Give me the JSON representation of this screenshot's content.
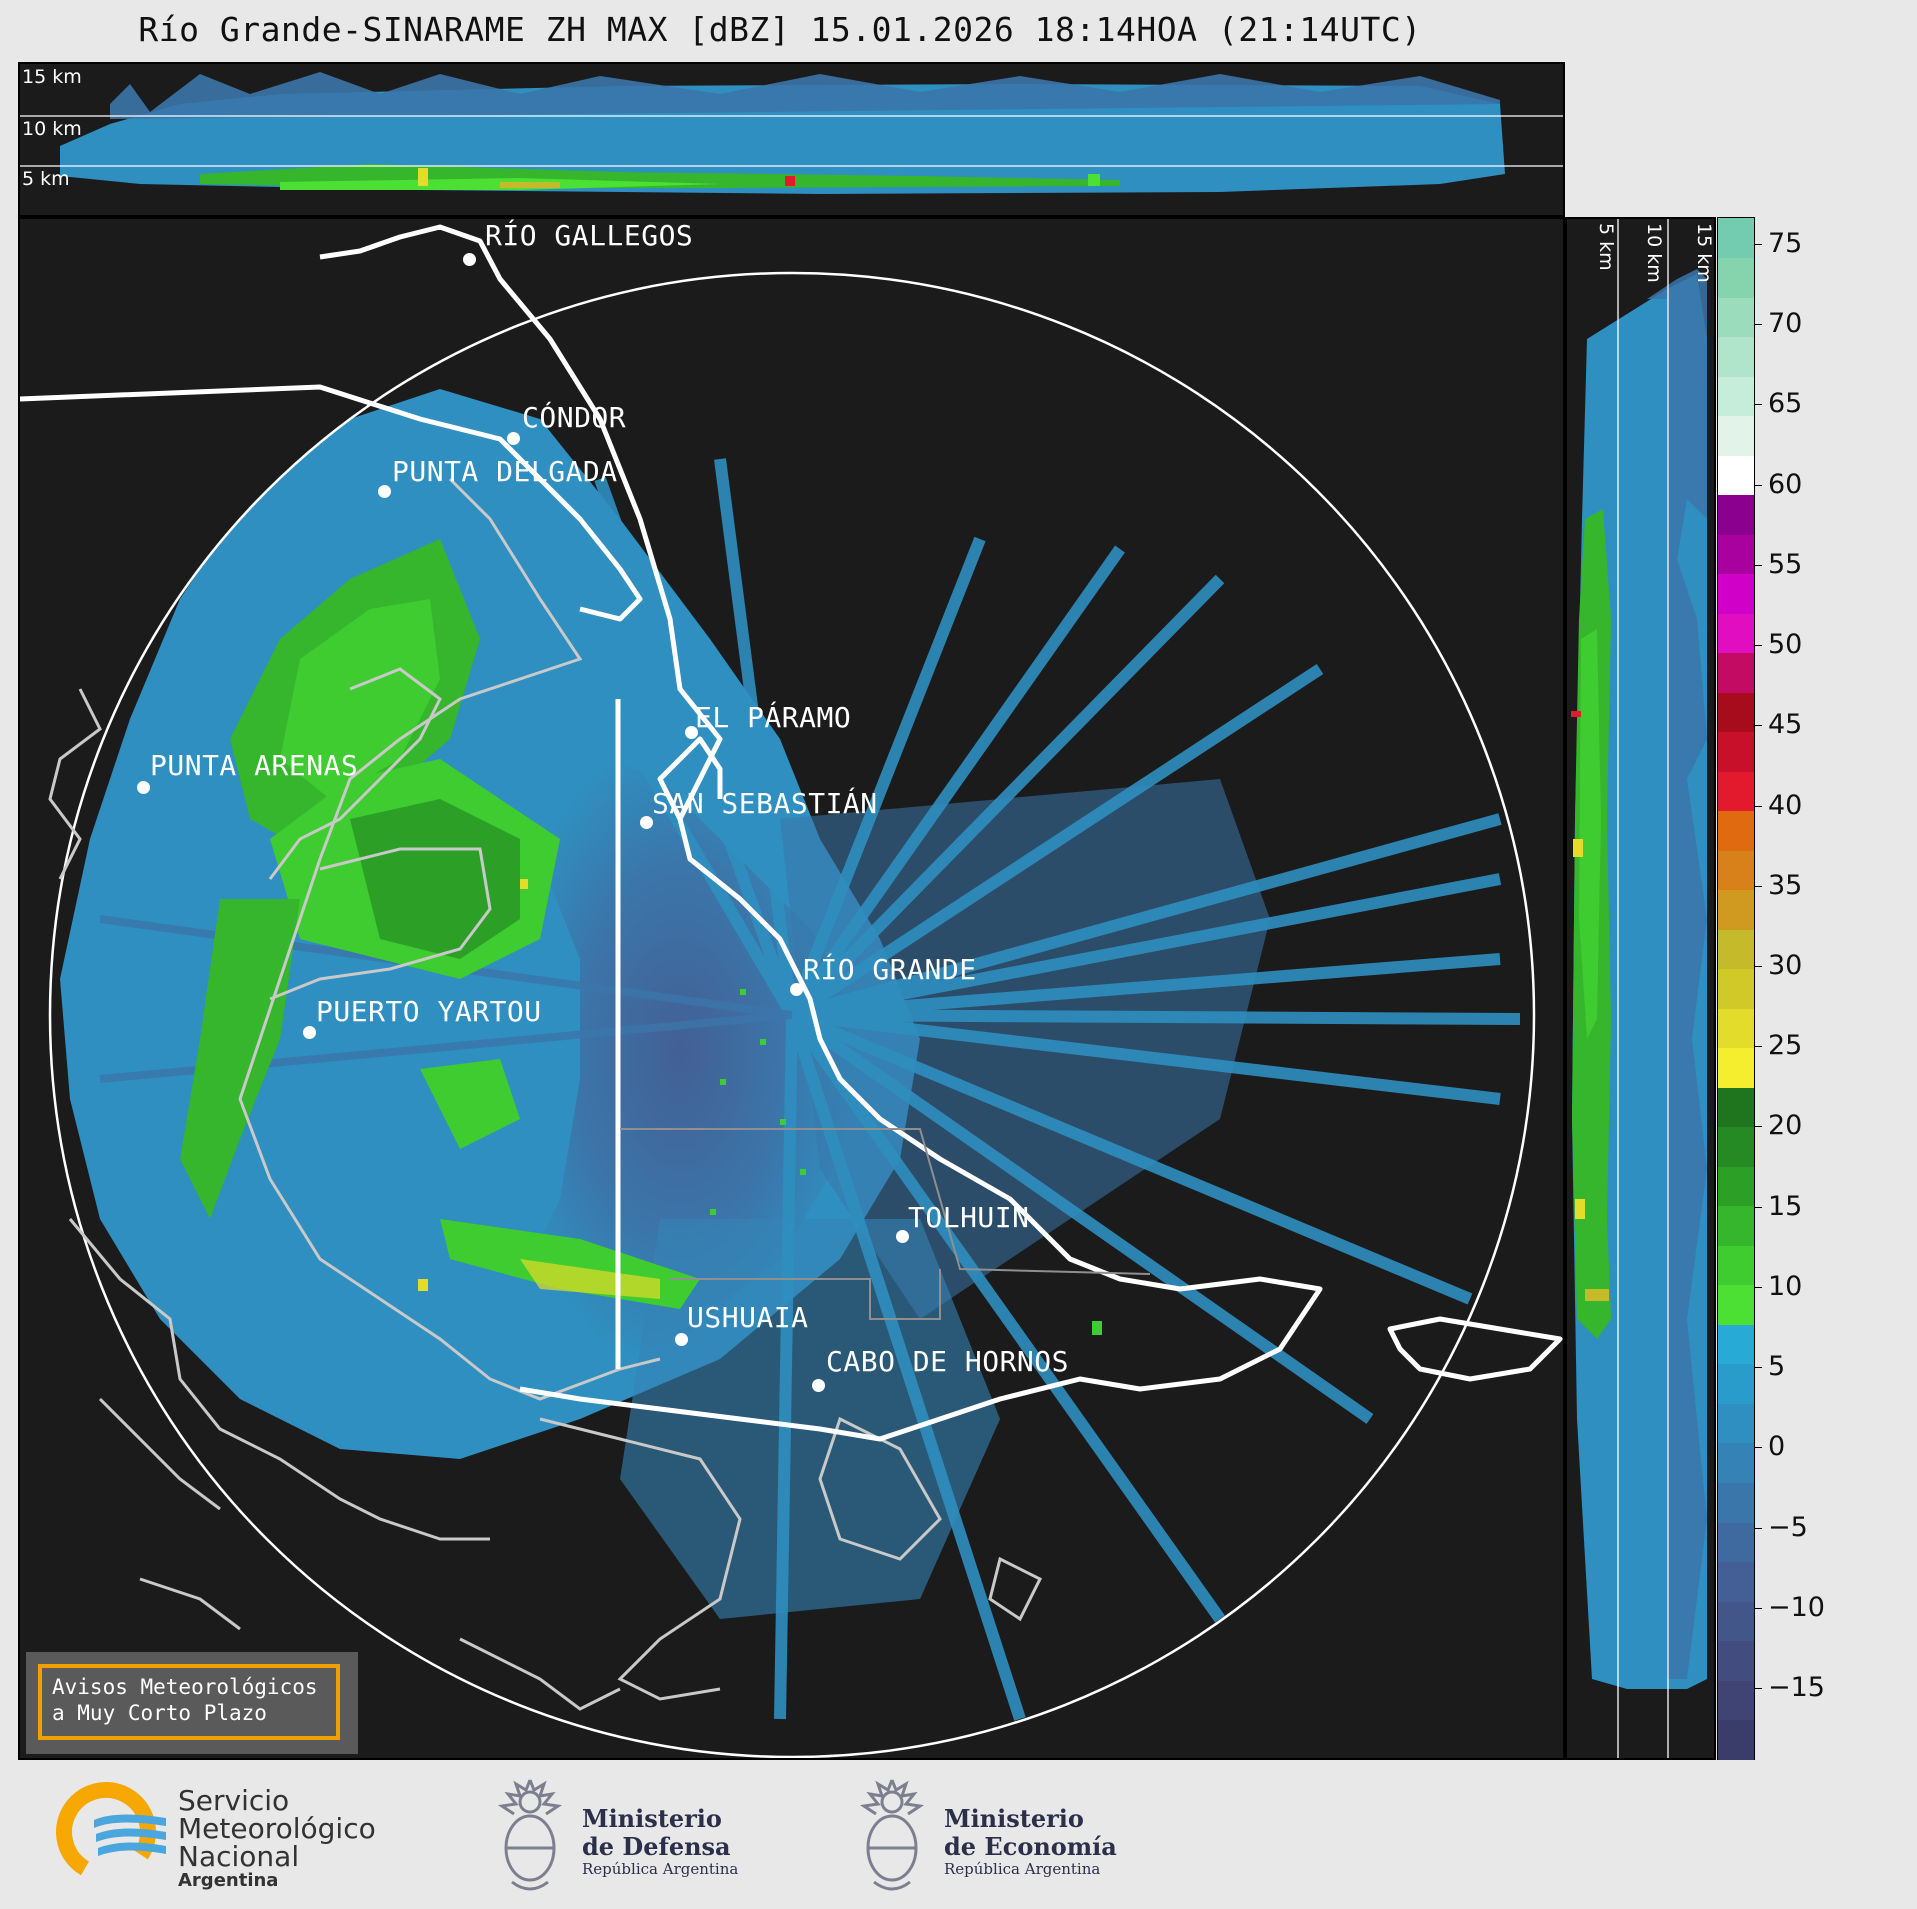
{
  "title": "Río Grande-SINARAME ZH MAX [dBZ] 15.01.2026 18:14HOA (21:14UTC)",
  "top_panel": {
    "labels": [
      "15 km",
      "10 km",
      "5 km"
    ]
  },
  "side_panel": {
    "labels": [
      "5 km",
      "10 km",
      "15 km"
    ]
  },
  "cities": [
    {
      "name": "RÍO GALLEGOS"
    },
    {
      "name": "CÓNDOR"
    },
    {
      "name": "PUNTA DELGADA"
    },
    {
      "name": "PUNTA ARENAS"
    },
    {
      "name": "EL PÁRAMO"
    },
    {
      "name": "SAN SEBASTIÁN"
    },
    {
      "name": "RÍO GRANDE"
    },
    {
      "name": "PUERTO YARTOU"
    },
    {
      "name": "TOLHUIN"
    },
    {
      "name": "USHUAIA"
    },
    {
      "name": "CABO DE HORNOS"
    }
  ],
  "colorbar": {
    "unit": "dBZ",
    "ticks": [
      "75",
      "70",
      "65",
      "60",
      "55",
      "50",
      "45",
      "40",
      "35",
      "30",
      "25",
      "20",
      "15",
      "10",
      "5",
      "0",
      "−5",
      "−10",
      "−15"
    ],
    "colors": [
      "#3a3c6a",
      "#3f4475",
      "#424c7f",
      "#43568a",
      "#435f95",
      "#3f6a9f",
      "#3b76aa",
      "#3583b6",
      "#2f8fc0",
      "#2a9ccb",
      "#27aad6",
      "#4be033",
      "#3fcc30",
      "#35b62c",
      "#2c9f27",
      "#258a23",
      "#1f741e",
      "#f4ee2e",
      "#e3dc2a",
      "#d0c928",
      "#c4ba2a",
      "#d09a20",
      "#d88019",
      "#e06a10",
      "#e3192d",
      "#c8102a",
      "#a70c1d",
      "#c40b63",
      "#e00ec0",
      "#d000c8",
      "#a900a0",
      "#8c0090",
      "#ffffff",
      "#e2f3ea",
      "#c6ecda",
      "#b0e5cc",
      "#9bdcbd",
      "#86d4ae",
      "#73ccb0"
    ]
  },
  "avisos": {
    "line1": "Avisos Meteorológicos",
    "line2": "a Muy Corto Plazo"
  },
  "logos": {
    "smn": {
      "line1": "Servicio",
      "line2": "Meteorológico",
      "line3": "Nacional",
      "line4": "Argentina"
    },
    "defensa": {
      "line1": "Ministerio",
      "line2": "de Defensa",
      "line3": "República Argentina"
    },
    "economia": {
      "line1": "Ministerio",
      "line2": "de Economía",
      "line3": "República Argentina"
    }
  },
  "colors": {
    "panel_bg": "#1b1b1b",
    "echo_light": "#2f8fc0",
    "echo_green": "#3fcc30",
    "echo_yellow": "#e3dc2a",
    "accent": "#f0a000"
  }
}
